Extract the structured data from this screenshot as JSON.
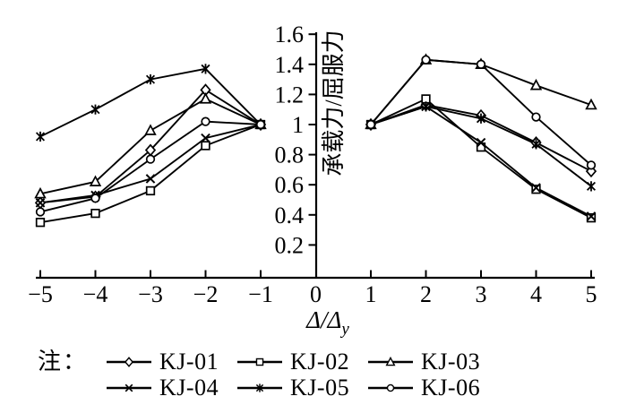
{
  "figure": {
    "note_label": "注：",
    "x_axis_label_main": "Δ/Δ",
    "x_axis_label_sub": "y",
    "y_axis_label": "承载力/屈服力",
    "colors": {
      "foreground": "#000000",
      "background": "#ffffff"
    }
  },
  "chart_data": {
    "type": "line",
    "title": "",
    "xlabel": "Δ/Δy",
    "ylabel": "承载力/屈服力",
    "xlim": [
      -5.7,
      5.7
    ],
    "ylim": [
      0,
      1.66
    ],
    "x_ticks": [
      -5,
      -4,
      -3,
      -2,
      -1,
      0,
      1,
      2,
      3,
      4,
      5
    ],
    "y_ticks": [
      0.2,
      0.4,
      0.6,
      0.8,
      1,
      1.2,
      1.4,
      1.6
    ],
    "grid": false,
    "legend_position": "below",
    "series": [
      {
        "name": "KJ-01",
        "marker": "diamond",
        "segments": [
          {
            "x": [
              -5,
              -4,
              -3,
              -2,
              -1
            ],
            "y": [
              0.48,
              0.52,
              0.83,
              1.23,
              1.0
            ]
          },
          {
            "x": [
              1,
              2,
              3,
              4,
              5
            ],
            "y": [
              1.0,
              1.13,
              1.06,
              0.88,
              0.69
            ]
          }
        ]
      },
      {
        "name": "KJ-02",
        "marker": "square",
        "segments": [
          {
            "x": [
              -5,
              -4,
              -3,
              -2,
              -1
            ],
            "y": [
              0.35,
              0.41,
              0.56,
              0.86,
              1.0
            ]
          },
          {
            "x": [
              1,
              2,
              3,
              4,
              5
            ],
            "y": [
              1.0,
              1.17,
              0.85,
              0.57,
              0.38
            ]
          }
        ]
      },
      {
        "name": "KJ-03",
        "marker": "triangle",
        "segments": [
          {
            "x": [
              -5,
              -4,
              -3,
              -2,
              -1
            ],
            "y": [
              0.54,
              0.62,
              0.96,
              1.17,
              1.0
            ]
          },
          {
            "x": [
              1,
              2,
              3,
              4,
              5
            ],
            "y": [
              1.0,
              1.43,
              1.4,
              1.26,
              1.13
            ]
          }
        ]
      },
      {
        "name": "KJ-04",
        "marker": "x",
        "segments": [
          {
            "x": [
              -5,
              -4,
              -3,
              -2,
              -1
            ],
            "y": [
              0.48,
              0.53,
              0.64,
              0.91,
              1.0
            ]
          },
          {
            "x": [
              1,
              2,
              3,
              4,
              5
            ],
            "y": [
              1.0,
              1.12,
              0.88,
              0.58,
              0.39
            ]
          }
        ]
      },
      {
        "name": "KJ-05",
        "marker": "asterisk",
        "segments": [
          {
            "x": [
              -5,
              -4,
              -3,
              -2,
              -1
            ],
            "y": [
              0.92,
              1.1,
              1.3,
              1.37,
              1.0
            ]
          },
          {
            "x": [
              1,
              2,
              3,
              4,
              5
            ],
            "y": [
              1.0,
              1.12,
              1.04,
              0.87,
              0.59
            ]
          }
        ]
      },
      {
        "name": "KJ-06",
        "marker": "circle",
        "segments": [
          {
            "x": [
              -5,
              -4,
              -3,
              -2,
              -1
            ],
            "y": [
              0.42,
              0.51,
              0.77,
              1.02,
              1.0
            ]
          },
          {
            "x": [
              1,
              2,
              3,
              4,
              5
            ],
            "y": [
              1.0,
              1.43,
              1.4,
              1.05,
              0.73
            ]
          }
        ]
      }
    ]
  }
}
